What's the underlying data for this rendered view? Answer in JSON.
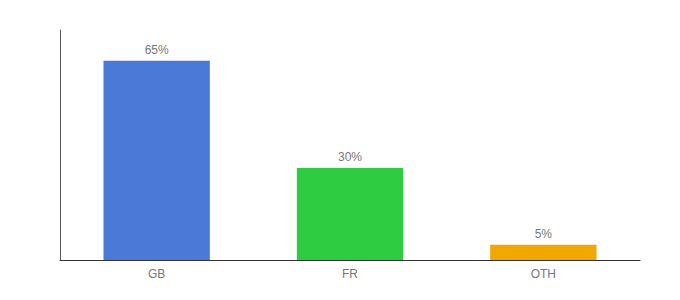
{
  "chart_data": {
    "type": "bar",
    "categories": [
      "GB",
      "FR",
      "OTH"
    ],
    "values": [
      65,
      30,
      5
    ],
    "value_labels": [
      "65%",
      "30%",
      "5%"
    ],
    "colors": [
      "#4b79d8",
      "#2ecc40",
      "#f0a800"
    ],
    "data_labels": true,
    "ylim": [
      0,
      75
    ],
    "grid": false,
    "tick_labels": "x"
  }
}
